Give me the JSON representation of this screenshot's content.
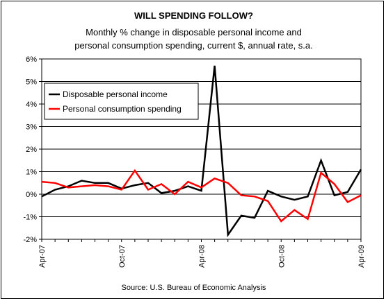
{
  "chart_data": {
    "type": "line",
    "title": "WILL SPENDING FOLLOW?",
    "subtitle_lines": [
      "Monthly % change in disposable personal income and",
      "personal consumption spending, current $, annual rate, s.a."
    ],
    "source": "Source: U.S. Bureau of Economic Analysis",
    "x": [
      "Apr-07",
      "May-07",
      "Jun-07",
      "Jul-07",
      "Aug-07",
      "Sep-07",
      "Oct-07",
      "Nov-07",
      "Dec-07",
      "Jan-08",
      "Feb-08",
      "Mar-08",
      "Apr-08",
      "May-08",
      "Jun-08",
      "Jul-08",
      "Aug-08",
      "Sep-08",
      "Oct-08",
      "Nov-08",
      "Dec-08",
      "Jan-09",
      "Feb-09",
      "Mar-09",
      "Apr-09"
    ],
    "x_tick_labels": [
      "Apr-07",
      "Oct-07",
      "Apr-08",
      "Oct-08",
      "Apr-09"
    ],
    "y_tick_labels": [
      "6%",
      "5%",
      "4%",
      "3%",
      "2%",
      "1%",
      "0%",
      "-1%",
      "-2%"
    ],
    "ylim": [
      -2,
      6
    ],
    "grid": true,
    "legend_position": "top-left",
    "series": [
      {
        "name": "Disposable personal income",
        "color": "#000000",
        "values": [
          -0.1,
          0.2,
          0.35,
          0.6,
          0.5,
          0.5,
          0.25,
          0.4,
          0.5,
          0.05,
          0.15,
          0.35,
          0.15,
          5.7,
          -1.8,
          -0.95,
          -1.05,
          0.15,
          -0.1,
          -0.25,
          -0.1,
          1.5,
          -0.05,
          0.1,
          1.1
        ]
      },
      {
        "name": "Personal consumption spending",
        "color": "#ff0000",
        "values": [
          0.55,
          0.5,
          0.3,
          0.35,
          0.4,
          0.35,
          0.2,
          1.05,
          0.2,
          0.45,
          0.0,
          0.55,
          0.3,
          0.7,
          0.5,
          -0.05,
          -0.1,
          -0.3,
          -1.2,
          -0.7,
          -1.1,
          0.95,
          0.45,
          -0.35,
          -0.05
        ]
      }
    ]
  }
}
